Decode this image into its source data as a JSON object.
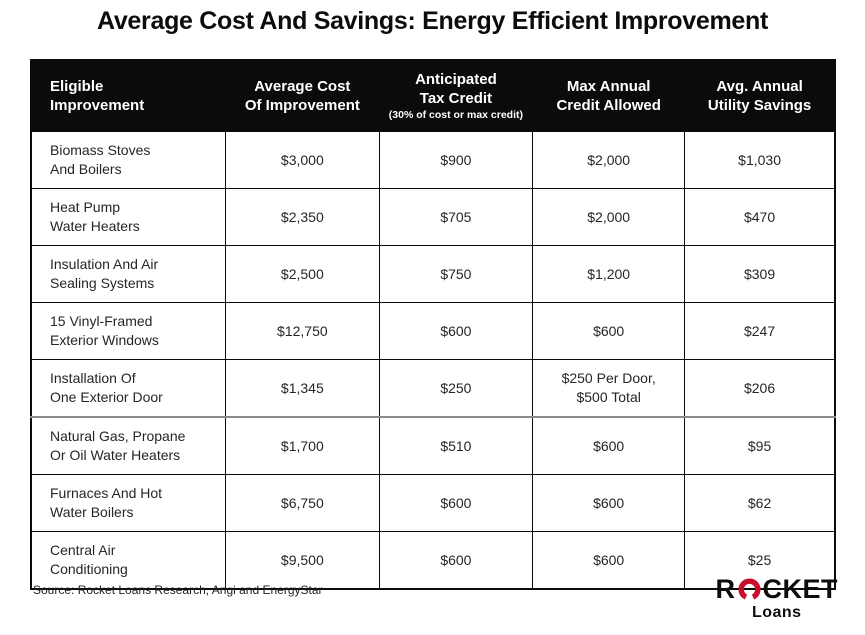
{
  "page": {
    "title": "Average Cost And Savings: Energy Efficient Improvement"
  },
  "chart_data": {
    "type": "table",
    "title": "Average Cost And Savings: Energy Efficient Improvement",
    "columns": [
      {
        "label": "Eligible\nImprovement",
        "sub": ""
      },
      {
        "label": "Average Cost\nOf Improvement",
        "sub": ""
      },
      {
        "label": "Anticipated\nTax Credit",
        "sub": "(30% of cost or max credit)"
      },
      {
        "label": "Max Annual\nCredit Allowed",
        "sub": ""
      },
      {
        "label": "Avg. Annual\nUtility Savings",
        "sub": ""
      }
    ],
    "rows": [
      {
        "improvement": "Biomass Stoves\nAnd Boilers",
        "values": [
          "$3,000",
          "$900",
          "$2,000",
          "$1,030"
        ]
      },
      {
        "improvement": "Heat Pump\nWater Heaters",
        "values": [
          "$2,350",
          "$705",
          "$2,000",
          "$470"
        ]
      },
      {
        "improvement": "Insulation And Air\nSealing Systems",
        "values": [
          "$2,500",
          "$750",
          "$1,200",
          "$309"
        ]
      },
      {
        "improvement": "15 Vinyl-Framed\nExterior Windows",
        "values": [
          "$12,750",
          "$600",
          "$600",
          "$247"
        ]
      },
      {
        "improvement": "Installation Of\nOne Exterior Door",
        "values": [
          "$1,345",
          "$250",
          "$250 Per Door,\n$500 Total",
          "$206"
        ]
      },
      {
        "improvement": "Natural Gas, Propane\nOr Oil Water Heaters",
        "values": [
          "$1,700",
          "$510",
          "$600",
          "$95"
        ]
      },
      {
        "improvement": "Furnaces And Hot\nWater Boilers",
        "values": [
          "$6,750",
          "$600",
          "$600",
          "$62"
        ]
      },
      {
        "improvement": "Central Air\nConditioning",
        "values": [
          "$9,500",
          "$600",
          "$600",
          "$25"
        ]
      }
    ]
  },
  "footer": {
    "source": "Source: Rocket Loans Research, Angi and EnergyStar"
  },
  "logo": {
    "brand_top_left": "R",
    "brand_top_right": "CKET",
    "brand_bottom": "Loans"
  },
  "colors": {
    "header_bg": "#0b0b0b",
    "header_text": "#ffffff",
    "body_text": "#262626",
    "border": "#0b0b0b",
    "brand_red": "#c8102e"
  }
}
